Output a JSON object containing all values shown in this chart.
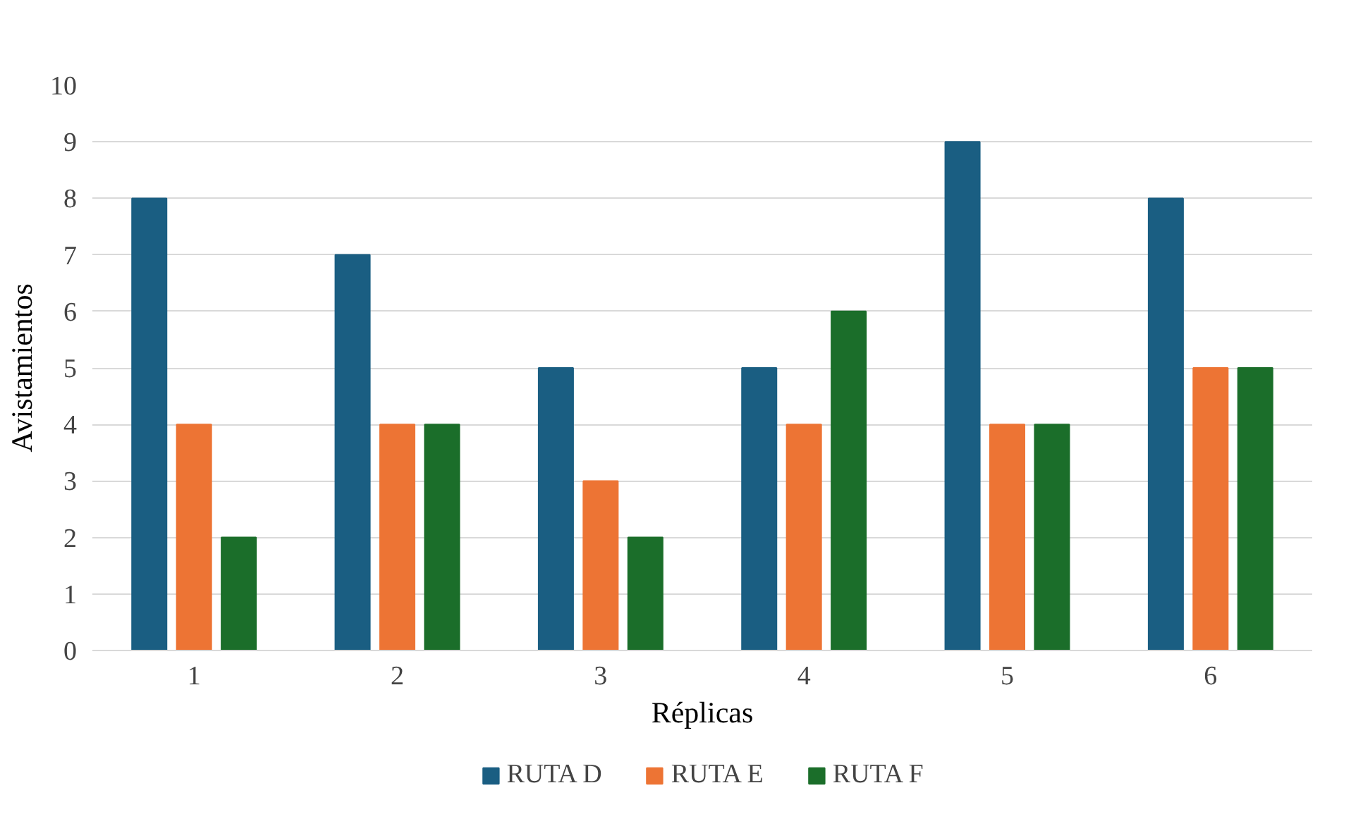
{
  "chart_data": {
    "type": "bar",
    "xlabel": "Réplicas",
    "ylabel": "Avistamientos",
    "categories": [
      "1",
      "2",
      "3",
      "4",
      "5",
      "6"
    ],
    "series": [
      {
        "name": "RUTA D",
        "color": "#1a5e82",
        "values": [
          8,
          7,
          5,
          5,
          9,
          8
        ]
      },
      {
        "name": "RUTA E",
        "color": "#ed7434",
        "values": [
          4,
          4,
          3,
          4,
          4,
          5
        ]
      },
      {
        "name": "RUTA F",
        "color": "#1b6e2a",
        "values": [
          2,
          4,
          2,
          6,
          4,
          5
        ]
      }
    ],
    "ylim": [
      0,
      10
    ],
    "yticks": [
      0,
      1,
      2,
      3,
      4,
      5,
      6,
      7,
      8,
      9,
      10
    ],
    "grid": "y",
    "legend": "bottom"
  }
}
